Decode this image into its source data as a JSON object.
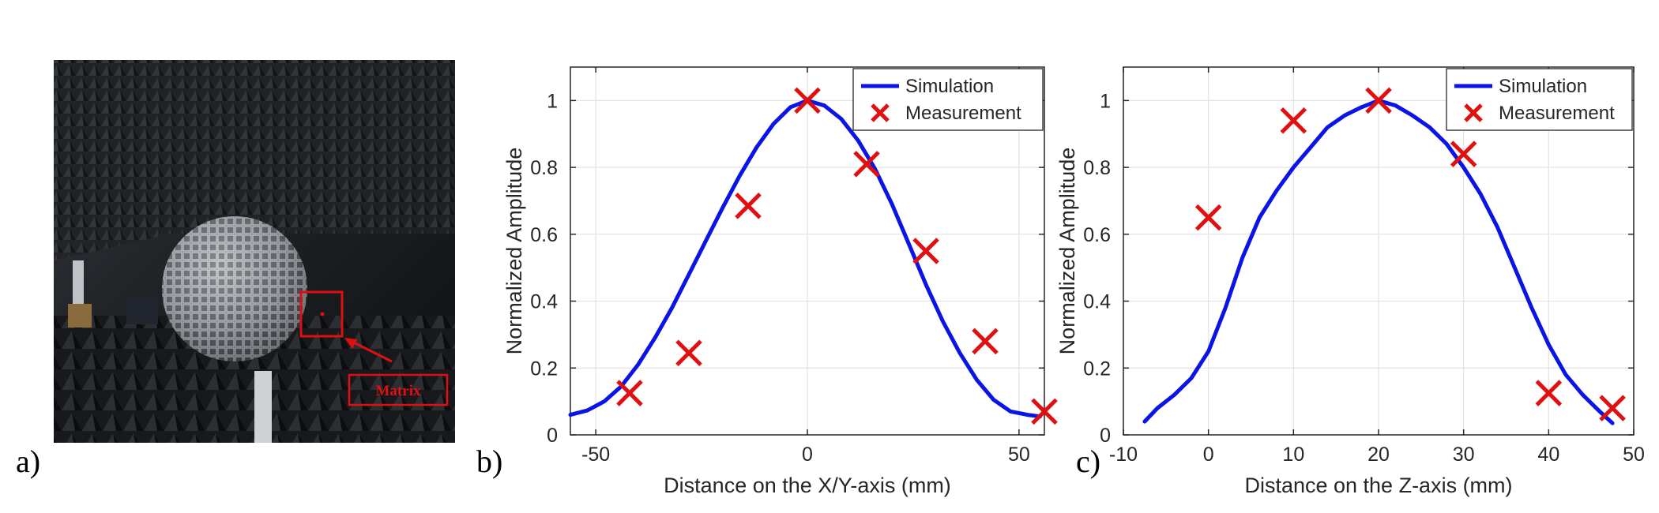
{
  "photo": {
    "label_letter": "a)",
    "annotation": "Matrix",
    "colors": {
      "box": "#e01010",
      "wall": "#1c1e22",
      "sphere": "#b9bcc2"
    }
  },
  "chart_data": [
    {
      "type": "line",
      "panel_label": "b)",
      "title": "",
      "xlabel": "Distance on the X/Y-axis (mm)",
      "ylabel": "Normalized Amplitude",
      "xlim": [
        -56,
        56
      ],
      "ylim": [
        0,
        1.1
      ],
      "xticks": [
        -50,
        0,
        50
      ],
      "yticks": [
        0,
        0.2,
        0.4,
        0.6,
        0.8,
        1
      ],
      "xtick_labels": [
        "-50",
        "0",
        "50"
      ],
      "ytick_labels": [
        "0",
        "0.2",
        "0.4",
        "0.6",
        "0.8",
        "1"
      ],
      "grid": true,
      "legend": [
        "Simulation",
        "Measurement"
      ],
      "legend_position": "top-right",
      "series": [
        {
          "name": "Simulation",
          "kind": "line",
          "color": "#0a14e6",
          "x": [
            -56,
            -52,
            -48,
            -44,
            -40,
            -36,
            -32,
            -28,
            -24,
            -20,
            -16,
            -12,
            -8,
            -4,
            0,
            4,
            8,
            12,
            16,
            20,
            24,
            28,
            32,
            36,
            40,
            44,
            48,
            52,
            55
          ],
          "y": [
            0.06,
            0.073,
            0.1,
            0.145,
            0.21,
            0.29,
            0.38,
            0.48,
            0.58,
            0.68,
            0.775,
            0.86,
            0.93,
            0.98,
            1.0,
            0.985,
            0.945,
            0.88,
            0.795,
            0.69,
            0.57,
            0.45,
            0.34,
            0.245,
            0.165,
            0.105,
            0.07,
            0.06,
            0.055
          ]
        },
        {
          "name": "Measurement",
          "kind": "scatter",
          "color": "#e01010",
          "x": [
            -42,
            -28,
            -14,
            0,
            14,
            28,
            42,
            56
          ],
          "y": [
            0.125,
            0.245,
            0.685,
            1.0,
            0.81,
            0.55,
            0.28,
            0.07
          ]
        }
      ]
    },
    {
      "type": "line",
      "panel_label": "c)",
      "title": "",
      "xlabel": "Distance on the Z-axis (mm)",
      "ylabel": "Normalized Amplitude",
      "xlim": [
        -10,
        50
      ],
      "ylim": [
        0,
        1.1
      ],
      "xticks": [
        -10,
        0,
        10,
        20,
        30,
        40,
        50
      ],
      "yticks": [
        0,
        0.2,
        0.4,
        0.6,
        0.8,
        1
      ],
      "xtick_labels": [
        "-10",
        "0",
        "10",
        "20",
        "30",
        "40",
        "50"
      ],
      "ytick_labels": [
        "0",
        "0.2",
        "0.4",
        "0.6",
        "0.8",
        "1"
      ],
      "grid": true,
      "legend": [
        "Simulation",
        "Measurement"
      ],
      "legend_position": "top-right",
      "series": [
        {
          "name": "Simulation",
          "kind": "line",
          "color": "#0a14e6",
          "x": [
            -7.5,
            -6,
            -4,
            -2,
            0,
            2,
            4,
            6,
            8,
            10,
            12,
            14,
            16,
            18,
            20,
            22,
            24,
            26,
            28,
            30,
            32,
            34,
            36,
            38,
            40,
            42,
            44,
            46,
            47.5
          ],
          "y": [
            0.04,
            0.08,
            0.12,
            0.17,
            0.25,
            0.38,
            0.53,
            0.65,
            0.73,
            0.8,
            0.86,
            0.92,
            0.955,
            0.98,
            1.0,
            0.985,
            0.955,
            0.92,
            0.87,
            0.8,
            0.72,
            0.62,
            0.5,
            0.38,
            0.27,
            0.18,
            0.12,
            0.07,
            0.035
          ]
        },
        {
          "name": "Measurement",
          "kind": "scatter",
          "color": "#e01010",
          "x": [
            0,
            10,
            20,
            30,
            40,
            47.5
          ],
          "y": [
            0.65,
            0.94,
            1.0,
            0.84,
            0.125,
            0.08
          ]
        }
      ]
    }
  ]
}
